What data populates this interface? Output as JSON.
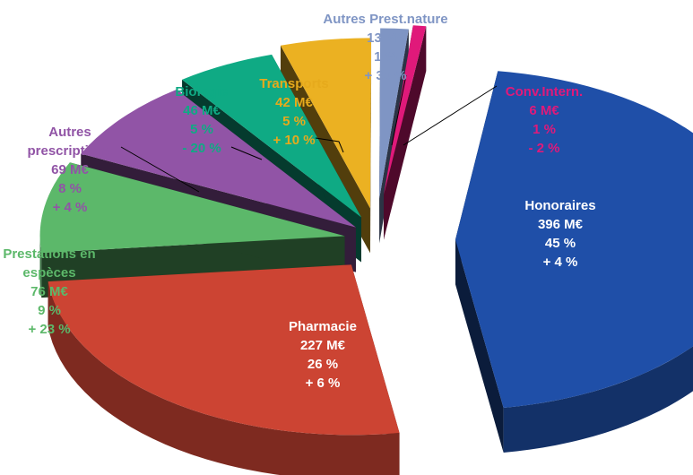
{
  "chart_data": {
    "type": "pie",
    "style": "3d-exploded",
    "slices": [
      {
        "name": "Honoraires",
        "amount": "396 M€",
        "value": 396,
        "share": "45 %",
        "change": "+ 4 %",
        "color": "#1f4fa8",
        "label_color": "#ffffff"
      },
      {
        "name": "Pharmacie",
        "amount": "227 M€",
        "value": 227,
        "share": "26 %",
        "change": "+ 6 %",
        "color": "#cc4433",
        "label_color": "#ffffff"
      },
      {
        "name": "Prestations en espèces",
        "amount": "76 M€",
        "value": 76,
        "share": "9 %",
        "change": "+ 23 %",
        "color": "#5cb86a",
        "label_color": "#5cb86a"
      },
      {
        "name": "Autres prescriptions",
        "amount": "69 M€",
        "value": 69,
        "share": "8 %",
        "change": "+ 4 %",
        "color": "#9154a6",
        "label_color": "#9154a6"
      },
      {
        "name": "Biologie",
        "amount": "46 M€",
        "value": 46,
        "share": "5 %",
        "change": "- 20 %",
        "color": "#0faa84",
        "label_color": "#0faa84"
      },
      {
        "name": "Transports",
        "amount": "42 M€",
        "value": 42,
        "share": "5 %",
        "change": "+ 10 %",
        "color": "#ebb122",
        "label_color": "#e6aa1c"
      },
      {
        "name": "Autres Prest.nature",
        "amount": "13 M€",
        "value": 13,
        "share": "1 %",
        "change": "+ 30 %",
        "color": "#7f95c4",
        "label_color": "#7f95c4"
      },
      {
        "name": "Conv.Intern.",
        "amount": "6 M€",
        "value": 6,
        "share": "1 %",
        "change": "- 2 %",
        "color": "#e0197a",
        "label_color": "#e0197a"
      }
    ]
  }
}
